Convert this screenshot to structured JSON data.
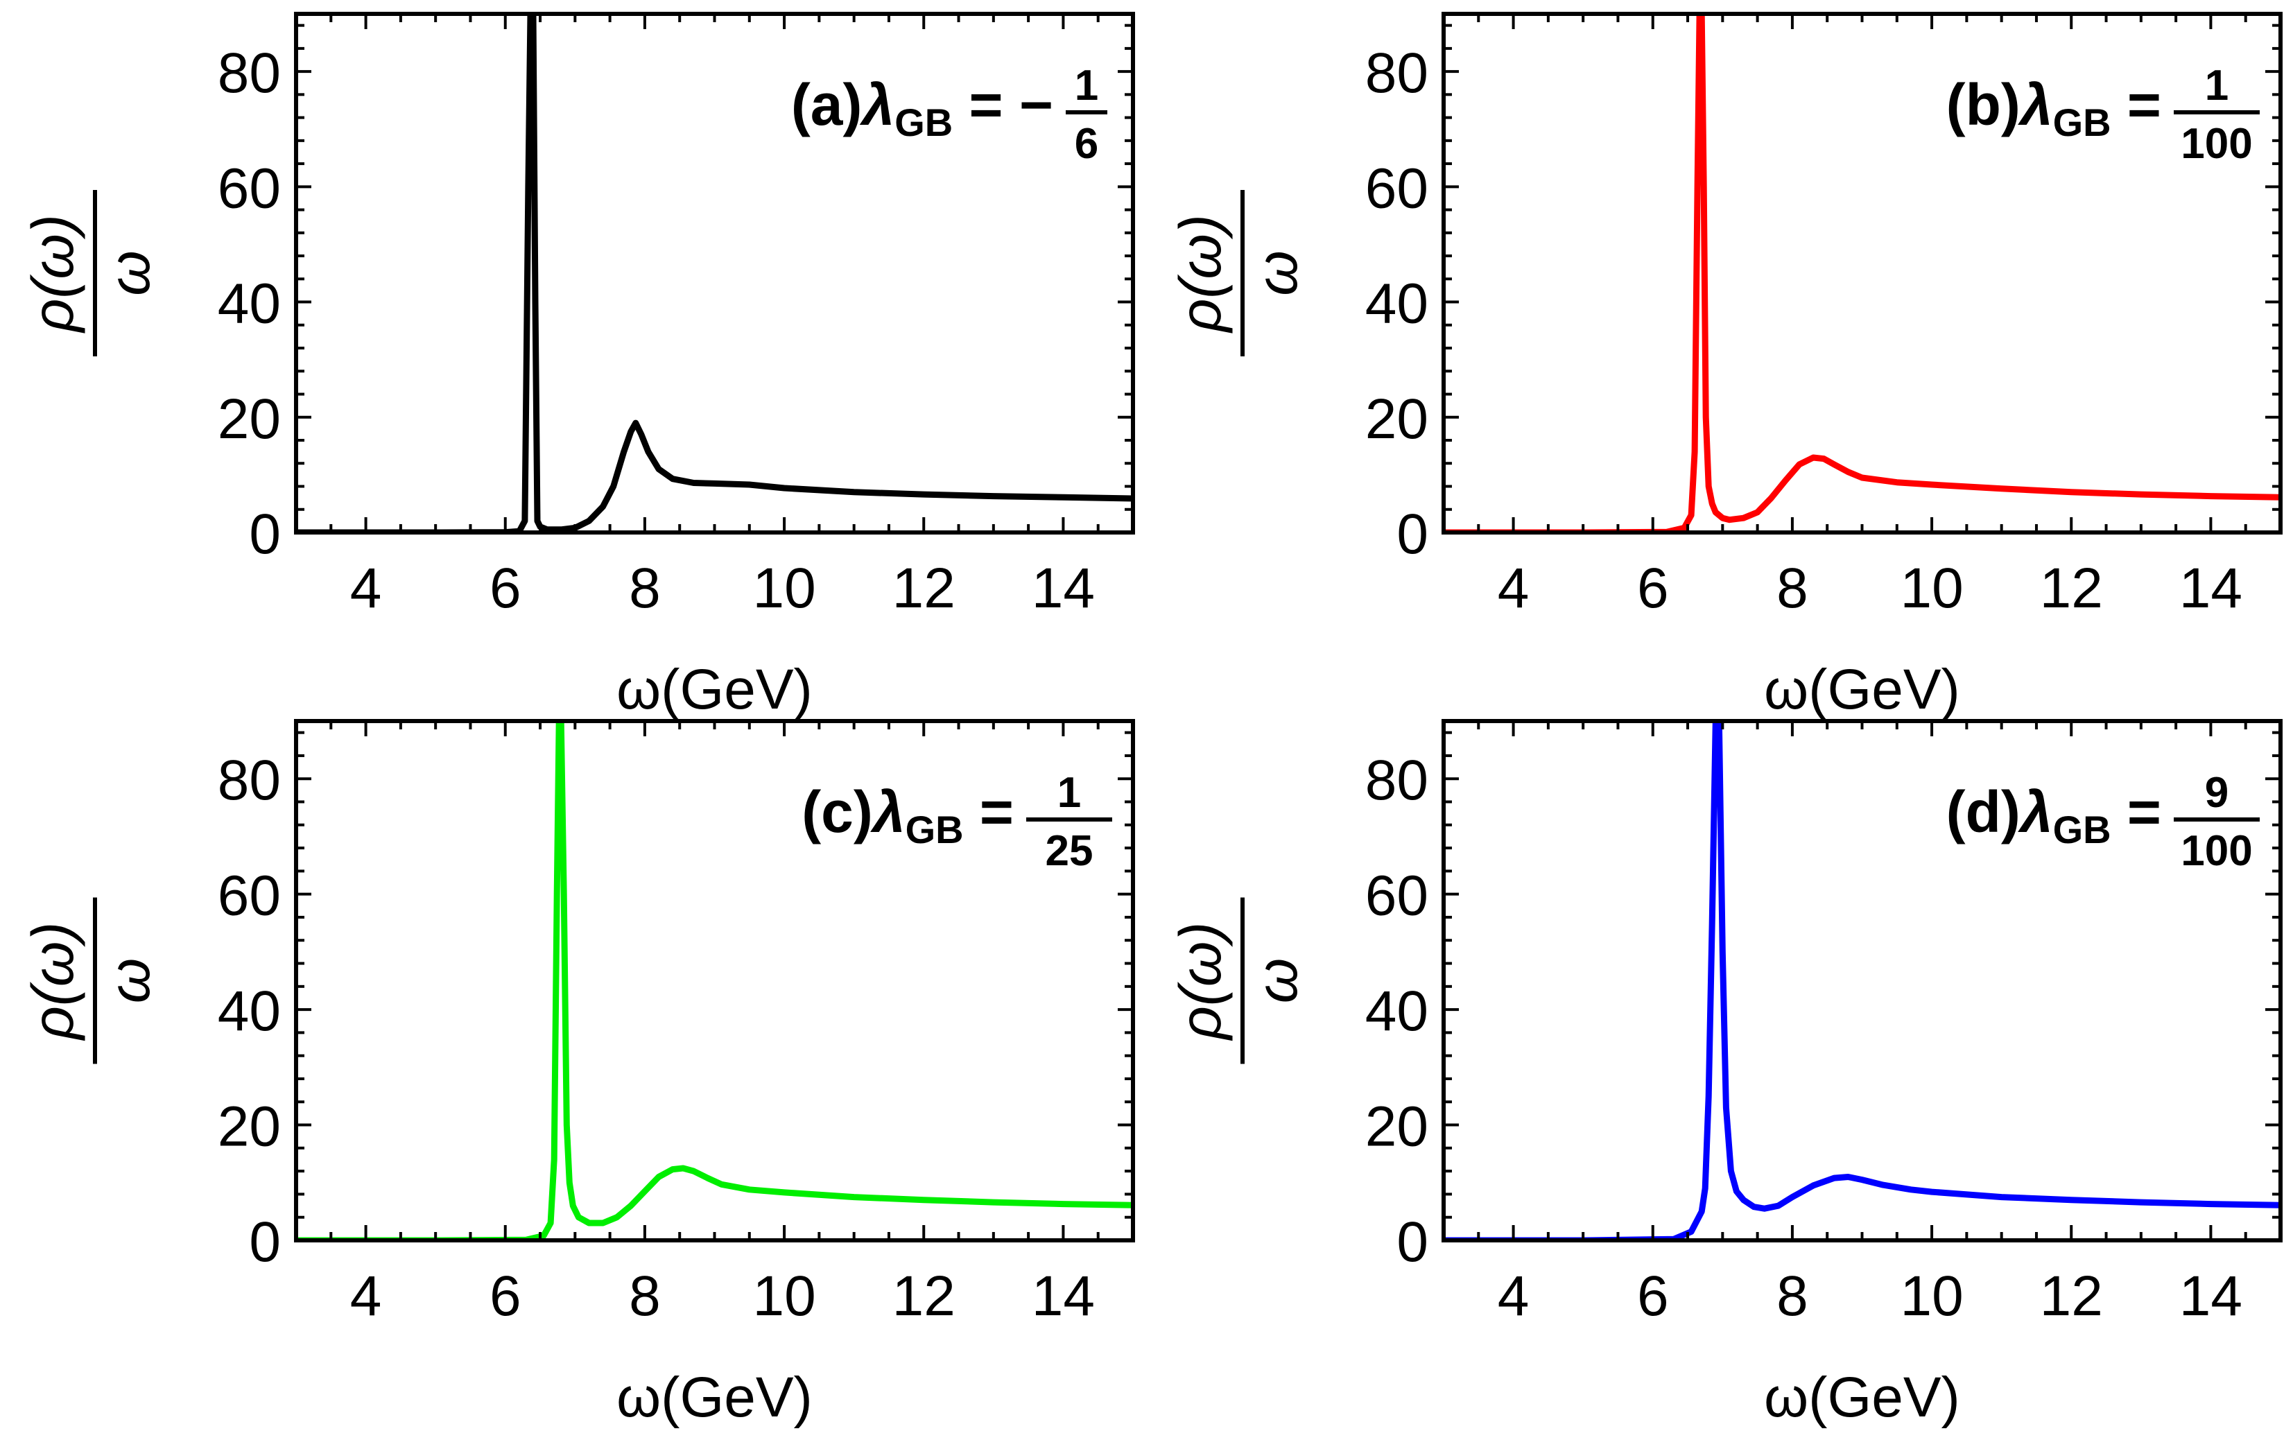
{
  "chart_data": [
    {
      "type": "line",
      "panel_label": "(a)",
      "annotation": {
        "label": "(a)",
        "symbol": "λ",
        "subscript": "GB",
        "sign": "−",
        "numerator": "1",
        "denominator": "6"
      },
      "xlabel": "ω(GeV)",
      "ylabel": {
        "numerator": "ρ(ω)",
        "denominator": "ω"
      },
      "xlim": [
        3,
        15
      ],
      "ylim": [
        0,
        90
      ],
      "x_ticks": [
        "4",
        "6",
        "8",
        "10",
        "12",
        "14"
      ],
      "y_ticks": [
        "0",
        "20",
        "40",
        "60",
        "80"
      ],
      "color": "#000000",
      "series": [
        {
          "x": [
            3,
            5,
            6.0,
            6.2,
            6.28,
            6.33,
            6.36,
            6.4,
            6.43,
            6.46,
            6.5,
            6.6,
            6.8,
            7.0,
            7.2,
            7.4,
            7.55,
            7.7,
            7.8,
            7.87,
            7.95,
            8.05,
            8.2,
            8.4,
            8.7,
            9.0,
            9.5,
            10,
            11,
            12,
            13,
            14,
            15
          ],
          "y": [
            0,
            0,
            0.05,
            0.2,
            2,
            60,
            90,
            90,
            40,
            2,
            1,
            0.5,
            0.5,
            0.8,
            2,
            4.5,
            8,
            14,
            17.5,
            19,
            17,
            14,
            11,
            9.3,
            8.6,
            8.5,
            8.3,
            7.7,
            7.0,
            6.6,
            6.3,
            6.1,
            5.9
          ]
        }
      ]
    },
    {
      "type": "line",
      "panel_label": "(b)",
      "annotation": {
        "label": "(b)",
        "symbol": "λ",
        "subscript": "GB",
        "sign": "",
        "numerator": "1",
        "denominator": "100"
      },
      "xlabel": "ω(GeV)",
      "ylabel": {
        "numerator": "ρ(ω)",
        "denominator": "ω"
      },
      "xlim": [
        3,
        15
      ],
      "ylim": [
        0,
        90
      ],
      "x_ticks": [
        "4",
        "6",
        "8",
        "10",
        "12",
        "14"
      ],
      "y_ticks": [
        "0",
        "20",
        "40",
        "60",
        "80"
      ],
      "color": "#ff0000",
      "series": [
        {
          "x": [
            3,
            5,
            6.2,
            6.45,
            6.55,
            6.6,
            6.64,
            6.67,
            6.7,
            6.73,
            6.76,
            6.8,
            6.85,
            6.9,
            7.0,
            7.1,
            7.3,
            7.5,
            7.7,
            7.9,
            8.1,
            8.3,
            8.45,
            8.6,
            8.8,
            9.0,
            9.5,
            10,
            11,
            12,
            13,
            14,
            15
          ],
          "y": [
            0,
            0,
            0.1,
            0.8,
            3,
            14,
            60,
            90,
            90,
            60,
            20,
            8,
            5,
            3.5,
            2.5,
            2.2,
            2.5,
            3.5,
            6,
            9,
            11.8,
            13,
            12.8,
            11.8,
            10.5,
            9.5,
            8.7,
            8.3,
            7.6,
            7.0,
            6.6,
            6.3,
            6.1
          ]
        }
      ]
    },
    {
      "type": "line",
      "panel_label": "(c)",
      "annotation": {
        "label": "(c)",
        "symbol": "λ",
        "subscript": "GB",
        "sign": "",
        "numerator": "1",
        "denominator": "25"
      },
      "xlabel": "ω(GeV)",
      "ylabel": {
        "numerator": "ρ(ω)",
        "denominator": "ω"
      },
      "xlim": [
        3,
        15
      ],
      "ylim": [
        0,
        90
      ],
      "x_ticks": [
        "4",
        "6",
        "8",
        "10",
        "12",
        "14"
      ],
      "y_ticks": [
        "0",
        "20",
        "40",
        "60",
        "80"
      ],
      "color": "#00ee00",
      "series": [
        {
          "x": [
            3,
            5,
            6.3,
            6.55,
            6.65,
            6.7,
            6.74,
            6.77,
            6.8,
            6.84,
            6.88,
            6.92,
            6.97,
            7.05,
            7.2,
            7.4,
            7.6,
            7.8,
            8.0,
            8.2,
            8.4,
            8.55,
            8.7,
            8.9,
            9.1,
            9.5,
            10,
            11,
            12,
            13,
            14,
            15
          ],
          "y": [
            0,
            0,
            0.1,
            0.8,
            3,
            14,
            60,
            90,
            90,
            60,
            20,
            10,
            6,
            4,
            3,
            3,
            4,
            6,
            8.5,
            11,
            12.3,
            12.5,
            12,
            10.8,
            9.7,
            8.8,
            8.3,
            7.5,
            7.0,
            6.6,
            6.3,
            6.1
          ]
        }
      ]
    },
    {
      "type": "line",
      "panel_label": "(d)",
      "annotation": {
        "label": "(d)",
        "symbol": "λ",
        "subscript": "GB",
        "sign": "",
        "numerator": "9",
        "denominator": "100"
      },
      "xlabel": "ω(GeV)",
      "ylabel": {
        "numerator": "ρ(ω)",
        "denominator": "ω"
      },
      "xlim": [
        3,
        15
      ],
      "ylim": [
        0,
        90
      ],
      "x_ticks": [
        "4",
        "6",
        "8",
        "10",
        "12",
        "14"
      ],
      "y_ticks": [
        "0",
        "20",
        "40",
        "60",
        "80"
      ],
      "color": "#0000ff",
      "series": [
        {
          "x": [
            3,
            5,
            6.3,
            6.55,
            6.7,
            6.75,
            6.8,
            6.85,
            6.9,
            6.95,
            7.0,
            7.05,
            7.12,
            7.2,
            7.3,
            7.45,
            7.6,
            7.8,
            8.0,
            8.3,
            8.6,
            8.8,
            9.0,
            9.3,
            9.7,
            10,
            11,
            12,
            13,
            14,
            15
          ],
          "y": [
            0,
            0,
            0.2,
            1.5,
            5,
            9,
            25,
            55,
            90,
            90,
            50,
            23,
            12,
            8.5,
            7,
            5.8,
            5.5,
            6,
            7.5,
            9.5,
            10.8,
            11,
            10.5,
            9.6,
            8.8,
            8.4,
            7.5,
            7.0,
            6.6,
            6.3,
            6.1
          ]
        }
      ]
    }
  ]
}
